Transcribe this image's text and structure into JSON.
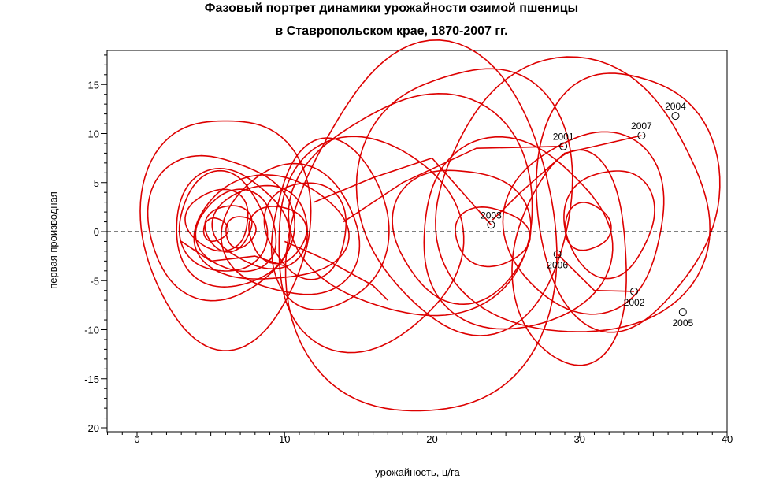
{
  "chart_data": {
    "type": "line",
    "title": "Фазовый портрет динамики урожайности озимой пшеницы",
    "subtitle": "в Ставропольском крае, 1870-2007 гг.",
    "xlabel": "урожайность, ц/га",
    "ylabel": "первая производная",
    "xlim": [
      -2,
      40
    ],
    "ylim": [
      -20,
      18.5
    ],
    "xticks": [
      0,
      10,
      20,
      30,
      40
    ],
    "yticks": [
      -20,
      -15,
      -10,
      -5,
      0,
      5,
      10,
      15
    ],
    "zero_line": "dashed",
    "grid": false,
    "series_color": "#dd0000",
    "loops": [
      {
        "cx": 6.0,
        "cy": 0.3,
        "rx": 5.5,
        "ry": 12.2
      },
      {
        "cx": 5.5,
        "cy": 0.5,
        "rx": 4.8,
        "ry": 7.5
      },
      {
        "cx": 6.3,
        "cy": 0.2,
        "rx": 3.8,
        "ry": 6.0
      },
      {
        "cx": 5.8,
        "cy": 0.8,
        "rx": 3.0,
        "ry": 5.0
      },
      {
        "cx": 6.8,
        "cy": 0.0,
        "rx": 2.8,
        "ry": 4.0
      },
      {
        "cx": 5.5,
        "cy": 1.2,
        "rx": 2.2,
        "ry": 3.0
      },
      {
        "cx": 6.2,
        "cy": 0.4,
        "rx": 1.6,
        "ry": 2.3
      },
      {
        "cx": 7.0,
        "cy": 0.0,
        "rx": 1.0,
        "ry": 1.6
      },
      {
        "cx": 5.3,
        "cy": 0.2,
        "rx": 0.8,
        "ry": 1.2
      },
      {
        "cx": 9.0,
        "cy": 0.2,
        "rx": 5.0,
        "ry": 5.5
      },
      {
        "cx": 10.5,
        "cy": 0.0,
        "rx": 4.5,
        "ry": 6.8
      },
      {
        "cx": 8.5,
        "cy": 0.5,
        "rx": 3.2,
        "ry": 4.2
      },
      {
        "cx": 11.5,
        "cy": 0.3,
        "rx": 2.8,
        "ry": 4.8
      },
      {
        "cx": 9.5,
        "cy": -0.2,
        "rx": 2.0,
        "ry": 2.8
      },
      {
        "cx": 15.5,
        "cy": -1.2,
        "rx": 6.5,
        "ry": 10.5
      },
      {
        "cx": 13.0,
        "cy": 0.5,
        "rx": 4.0,
        "ry": 8.5
      },
      {
        "cx": 19.5,
        "cy": -0.5,
        "rx": 9.0,
        "ry": 19.0
      },
      {
        "cx": 19.0,
        "cy": 2.5,
        "rx": 8.0,
        "ry": 11.5
      },
      {
        "cx": 22.5,
        "cy": 3.5,
        "rx": 7.0,
        "ry": 14.0
      },
      {
        "cx": 22.0,
        "cy": -0.2,
        "rx": 4.5,
        "ry": 7.0
      },
      {
        "cx": 24.0,
        "cy": -0.5,
        "rx": 2.5,
        "ry": 3.0
      },
      {
        "cx": 25.5,
        "cy": -0.5,
        "rx": 6.5,
        "ry": 9.5
      },
      {
        "cx": 29.5,
        "cy": 3.0,
        "rx": 9.5,
        "ry": 13.5
      },
      {
        "cx": 29.5,
        "cy": -3.0,
        "rx": 4.0,
        "ry": 10.5
      },
      {
        "cx": 30.5,
        "cy": 1.0,
        "rx": 5.5,
        "ry": 9.0
      },
      {
        "cx": 32.0,
        "cy": 1.0,
        "rx": 3.0,
        "ry": 5.5
      },
      {
        "cx": 33.0,
        "cy": 3.5,
        "rx": 6.0,
        "ry": 13.5
      },
      {
        "cx": 30.5,
        "cy": 0.5,
        "rx": 1.5,
        "ry": 2.5
      }
    ],
    "connectors": [
      [
        [
          14,
          1
        ],
        [
          18,
          5
        ],
        [
          23,
          8.5
        ],
        [
          28.9,
          8.7
        ]
      ],
      [
        [
          12,
          3
        ],
        [
          16,
          5.5
        ],
        [
          20,
          7.5
        ],
        [
          24,
          0.7
        ]
      ],
      [
        [
          24.1,
          1.2
        ],
        [
          26,
          4
        ],
        [
          29,
          8
        ],
        [
          34.2,
          9.8
        ]
      ],
      [
        [
          28.5,
          -2.3
        ],
        [
          31,
          -6
        ],
        [
          33.7,
          -6.1
        ]
      ],
      [
        [
          10,
          -1
        ],
        [
          13,
          -3
        ],
        [
          16,
          -5.5
        ],
        [
          17,
          -7
        ]
      ],
      [
        [
          3,
          -1
        ],
        [
          5,
          -3
        ],
        [
          8,
          -2.5
        ],
        [
          10,
          -3.5
        ]
      ]
    ],
    "annotations": [
      {
        "year": "2001",
        "x": 28.9,
        "y": 8.7
      },
      {
        "year": "2002",
        "x": 33.7,
        "y": -6.1
      },
      {
        "year": "2003",
        "x": 24.0,
        "y": 0.7
      },
      {
        "year": "2004",
        "x": 36.5,
        "y": 11.8
      },
      {
        "year": "2005",
        "x": 37.0,
        "y": -8.2
      },
      {
        "year": "2006",
        "x": 28.5,
        "y": -2.3
      },
      {
        "year": "2007",
        "x": 34.2,
        "y": 9.8
      }
    ]
  }
}
